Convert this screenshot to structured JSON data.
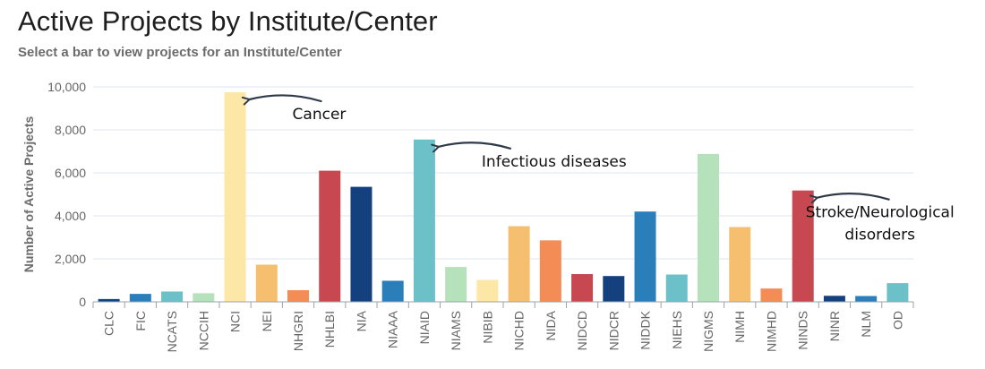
{
  "title": "Active Projects by Institute/Center",
  "subtitle": "Select a bar to view projects for an Institute/Center",
  "chart_data": {
    "type": "bar",
    "title": "Active Projects by Institute/Center",
    "xlabel": "",
    "ylabel": "Number of Active Projects",
    "ylim": [
      0,
      10000
    ],
    "yticks": [
      0,
      2000,
      4000,
      6000,
      8000,
      10000
    ],
    "ytick_labels": [
      "0",
      "2,000",
      "4,000",
      "6,000",
      "8,000",
      "10,000"
    ],
    "grid": true,
    "categories": [
      "CLC",
      "FIC",
      "NCATS",
      "NCCIH",
      "NCI",
      "NEI",
      "NHGRI",
      "NHLBI",
      "NIA",
      "NIAAA",
      "NIAID",
      "NIAMS",
      "NIBIB",
      "NICHD",
      "NIDA",
      "NIDCD",
      "NIDCR",
      "NIDDK",
      "NIEHS",
      "NIGMS",
      "NIMH",
      "NIMHD",
      "NINDS",
      "NINR",
      "NLM",
      "OD"
    ],
    "values": [
      130,
      370,
      480,
      400,
      9750,
      1730,
      540,
      6100,
      5350,
      980,
      7550,
      1620,
      1020,
      3520,
      2860,
      1290,
      1200,
      4200,
      1270,
      6880,
      3480,
      620,
      5180,
      280,
      270,
      870
    ],
    "colors": [
      "#14417e",
      "#2a7fba",
      "#6cc1c8",
      "#b6e2bb",
      "#fce7a6",
      "#f5bf6f",
      "#f48c55",
      "#c84852",
      "#14417e",
      "#2a7fba",
      "#6cc1c8",
      "#b6e2bb",
      "#fce7a6",
      "#f5bf6f",
      "#f48c55",
      "#c84852",
      "#14417e",
      "#2a7fba",
      "#6cc1c8",
      "#b6e2bb",
      "#f5bf6f",
      "#f48c55",
      "#c84852",
      "#14417e",
      "#2a7fba",
      "#6cc1c8"
    ],
    "annotations": [
      {
        "lines": [
          "Cancer"
        ],
        "target": "NCI"
      },
      {
        "lines": [
          "Infectious diseases"
        ],
        "target": "NIAID"
      },
      {
        "lines": [
          "Stroke/Neurological",
          "disorders"
        ],
        "target": "NINDS"
      }
    ]
  }
}
